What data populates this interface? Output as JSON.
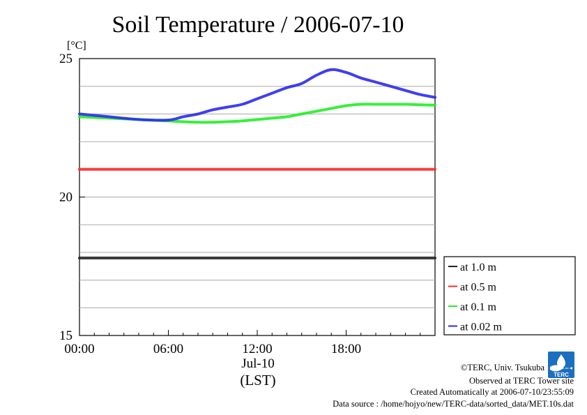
{
  "chart_data": {
    "type": "line",
    "title": "Soil Temperature / 2006-07-10",
    "ylabel": "[°C]",
    "xlabel": "(LST)",
    "date_label": "Jul-10",
    "x_ticks": [
      "00:00",
      "06:00",
      "12:00",
      "18:00"
    ],
    "y_ticks": [
      15,
      20,
      25
    ],
    "ylim": [
      15,
      25
    ],
    "xlim_hours": [
      0,
      24
    ],
    "grid": true,
    "legend_position": "right-bottom",
    "x": [
      0,
      2,
      4,
      6,
      7,
      8,
      9,
      10,
      11,
      12,
      13,
      14,
      15,
      16,
      17,
      18,
      19,
      20,
      21,
      22,
      23,
      24
    ],
    "series": [
      {
        "name": "at 1.0 m",
        "color": "#222222",
        "values": [
          17.8,
          17.8,
          17.8,
          17.8,
          17.8,
          17.8,
          17.8,
          17.8,
          17.8,
          17.8,
          17.8,
          17.8,
          17.8,
          17.8,
          17.8,
          17.8,
          17.8,
          17.8,
          17.8,
          17.8,
          17.8,
          17.8
        ]
      },
      {
        "name": "at 0.5 m",
        "color": "#ff2a2a",
        "values": [
          21.0,
          21.0,
          21.0,
          21.0,
          21.0,
          21.0,
          21.0,
          21.0,
          21.0,
          21.0,
          21.0,
          21.0,
          21.0,
          21.0,
          21.0,
          21.0,
          21.0,
          21.0,
          21.0,
          21.0,
          21.0,
          21.0
        ]
      },
      {
        "name": "at 0.1 m",
        "color": "#22ee22",
        "values": [
          22.9,
          22.85,
          22.8,
          22.75,
          22.72,
          22.7,
          22.7,
          22.72,
          22.75,
          22.8,
          22.85,
          22.9,
          23.0,
          23.1,
          23.2,
          23.3,
          23.35,
          23.35,
          23.35,
          23.35,
          23.33,
          23.32
        ]
      },
      {
        "name": "at 0.02 m",
        "color": "#2a2aee",
        "values": [
          23.0,
          22.9,
          22.8,
          22.78,
          22.9,
          23.0,
          23.15,
          23.25,
          23.35,
          23.55,
          23.75,
          23.95,
          24.1,
          24.4,
          24.6,
          24.5,
          24.3,
          24.15,
          24.0,
          23.85,
          23.7,
          23.6
        ]
      }
    ]
  },
  "credits": {
    "copyright": "©TERC, Univ. Tsukuba",
    "site": "Observed at TERC Tower site",
    "created": "Created Automatically at 2006-07-10/23:55:09",
    "source": "Data source : /home/hojyo/new/TERC-data/sorted_data/MET.10s.dat",
    "logo_text": "TERC"
  }
}
